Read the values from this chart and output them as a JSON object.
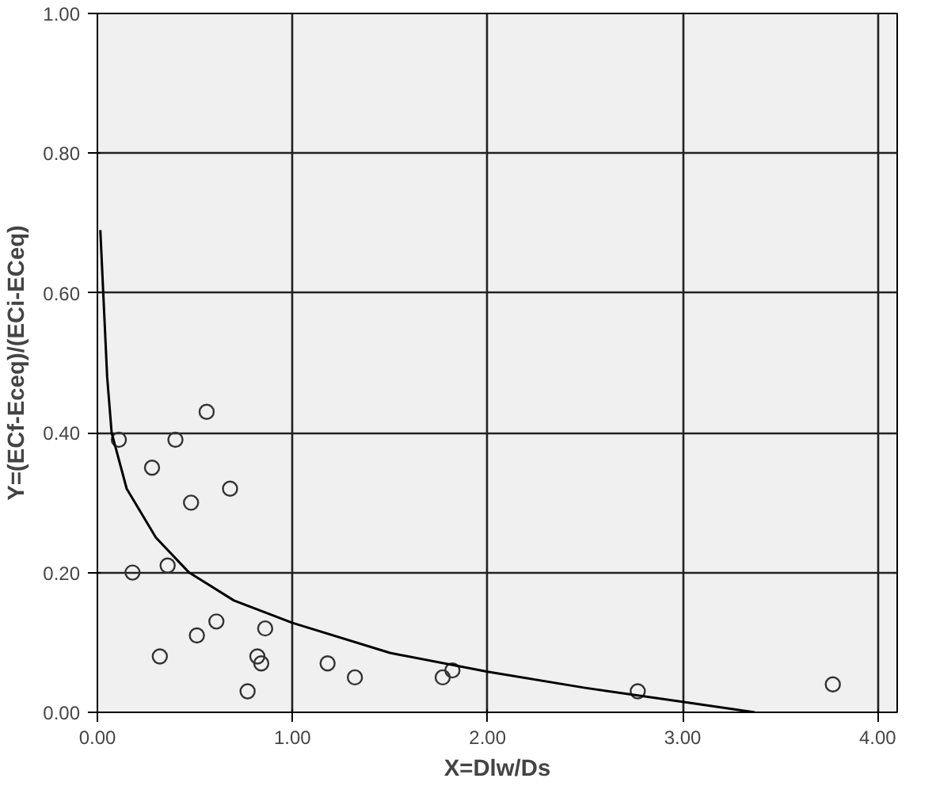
{
  "chart_data": {
    "type": "scatter",
    "xlabel": "X=Dlw/Ds",
    "ylabel": "Y=(ECf-Eceq)/(ECi-ECeq)",
    "xlim": [
      0,
      4.1
    ],
    "ylim": [
      0,
      1.0
    ],
    "xticks": [
      {
        "value": 0,
        "label": "0.00"
      },
      {
        "value": 1,
        "label": "1.00"
      },
      {
        "value": 2,
        "label": "2.00"
      },
      {
        "value": 3,
        "label": "3.00"
      },
      {
        "value": 4,
        "label": "4.00"
      }
    ],
    "yticks": [
      {
        "value": 0,
        "label": "0.00"
      },
      {
        "value": 0.2,
        "label": "0.20"
      },
      {
        "value": 0.4,
        "label": "0.40"
      },
      {
        "value": 0.6,
        "label": "0.60"
      },
      {
        "value": 0.8,
        "label": "0.80"
      },
      {
        "value": 1.0,
        "label": "1.00"
      }
    ],
    "grid": true,
    "marker": "circle",
    "series": [
      {
        "color": "#333333",
        "x": [
          0.11,
          0.4,
          0.56,
          0.28,
          0.48,
          0.68,
          0.18,
          0.36,
          0.61,
          0.51,
          0.32,
          0.86,
          0.82,
          0.84,
          0.77,
          1.18,
          1.32,
          1.77,
          1.82,
          2.77,
          3.77
        ],
        "values": [
          0.39,
          0.39,
          0.43,
          0.35,
          0.3,
          0.32,
          0.2,
          0.21,
          0.13,
          0.11,
          0.08,
          0.12,
          0.08,
          0.07,
          0.03,
          0.07,
          0.05,
          0.05,
          0.06,
          0.03,
          0.04
        ]
      },
      {
        "type": "line",
        "color": "#000000",
        "marker": "none",
        "x": [
          0.015,
          0.03,
          0.05,
          0.073,
          0.15,
          0.3,
          0.47,
          0.7,
          1.0,
          1.5,
          2.0,
          2.5,
          3.0,
          3.37
        ],
        "values": [
          0.69,
          0.6,
          0.48,
          0.4,
          0.32,
          0.25,
          0.2,
          0.16,
          0.128,
          0.085,
          0.058,
          0.035,
          0.015,
          0.0
        ]
      }
    ]
  }
}
